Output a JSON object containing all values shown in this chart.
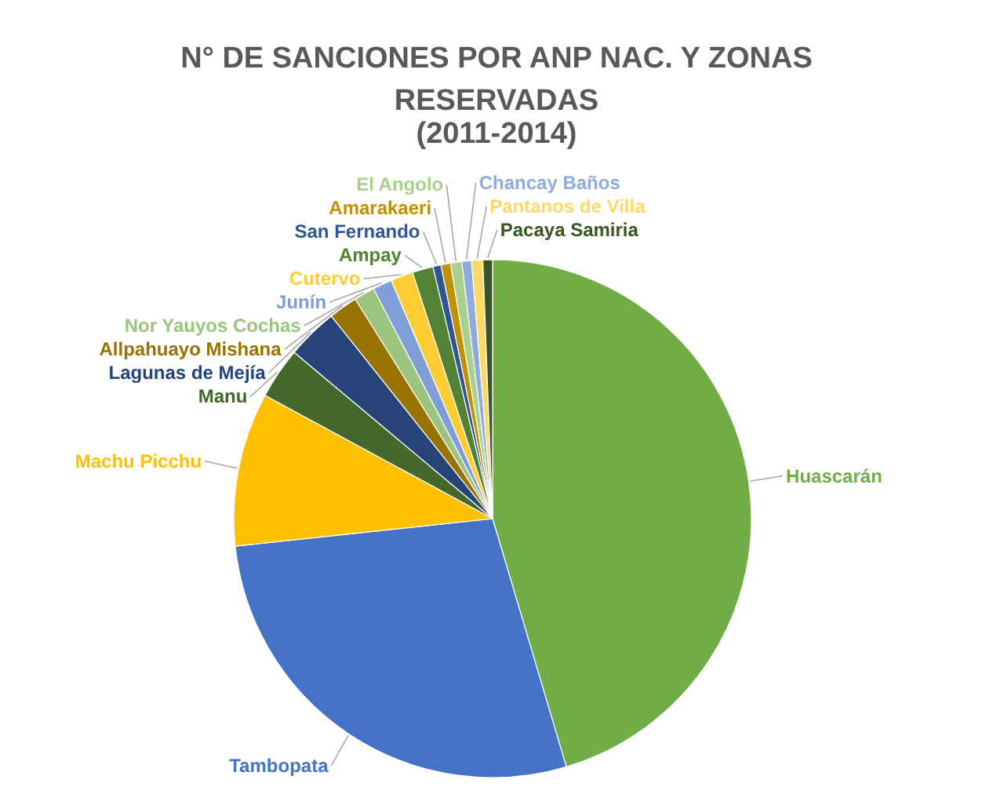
{
  "chart_data": {
    "type": "pie",
    "title": "N° DE SANCIONES POR ANP NAC. Y ZONAS RESERVADAS",
    "subtitle": "(2011-2014)",
    "categories": [
      "Huascarán",
      "Tambopata",
      "Machu Picchu",
      "Manu",
      "Lagunas de Mejía",
      "Allpahuayo Mishana",
      "Nor Yauyos Cochas",
      "Junín",
      "Cutervo",
      "Ampay",
      "San Fernando",
      "Amarakaeri",
      "El Angolo",
      "Chancay Baños",
      "Pantanos de Villa",
      "Pacaya Samiria"
    ],
    "values": [
      45.4,
      27.9,
      9.6,
      3.2,
      3.2,
      1.8,
      1.3,
      1.2,
      1.4,
      1.3,
      0.5,
      0.6,
      0.7,
      0.6,
      0.7,
      0.6
    ],
    "colors": [
      "#70ad47",
      "#4472c4",
      "#ffc000",
      "#43682b",
      "#264478",
      "#997300",
      "#9bc57f",
      "#7f9ed8",
      "#ffcd33",
      "#548235",
      "#2f5597",
      "#bf9000",
      "#a9d18e",
      "#8faadc",
      "#ffd966",
      "#375623"
    ]
  }
}
